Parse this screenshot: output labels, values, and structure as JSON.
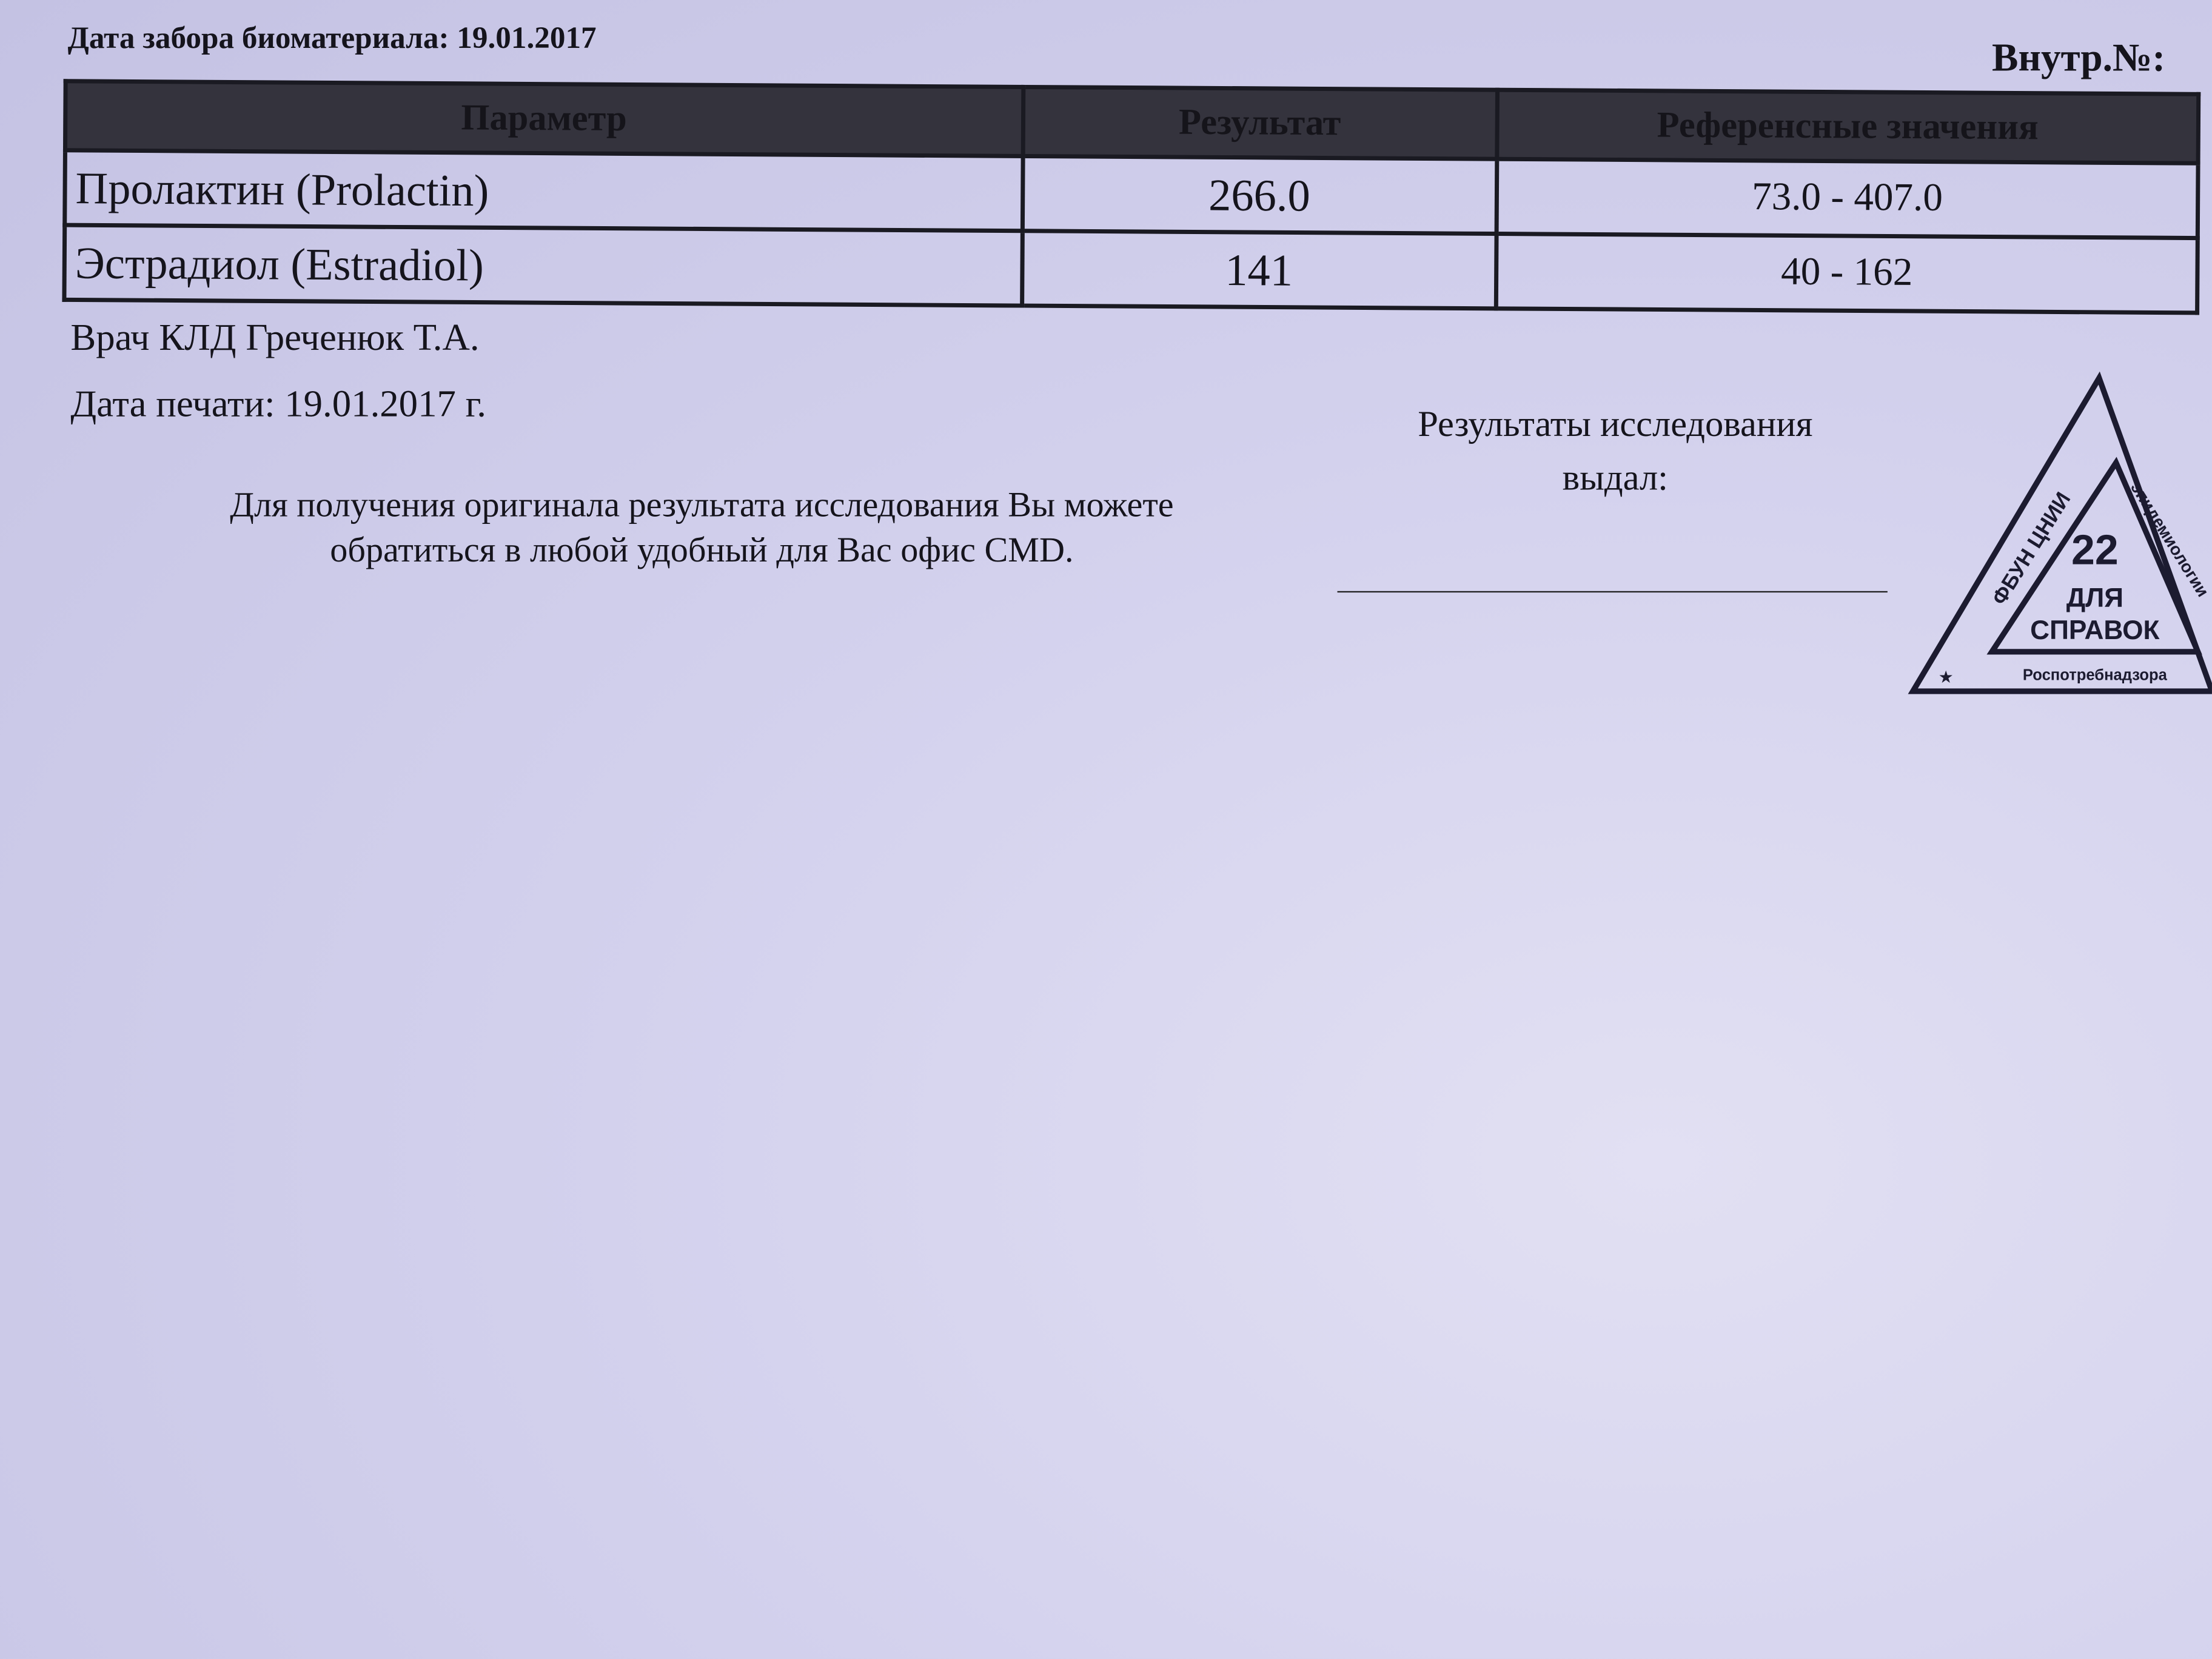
{
  "header": {
    "collection_date_label": "Дата забора биоматериала: 19.01.2017",
    "internal_no_label": "Внутр.№:"
  },
  "table": {
    "columns": [
      "Параметр",
      "Результат",
      "Референсные значения"
    ],
    "rows": [
      {
        "parameter": "Пролактин (Prolactin)",
        "result": "266.0",
        "reference": "73.0 - 407.0"
      },
      {
        "parameter": "Эстрадиол (Estradiol)",
        "result": "141",
        "reference": "40 - 162"
      }
    ]
  },
  "footer": {
    "doctor": "Врач КЛД Греченюк Т.А.",
    "print_date": "Дата печати: 19.01.2017 г.",
    "note": "Для получения оригинала результата исследования Вы можете обратиться в любой удобный для Вас офис CMD.",
    "issued_by_line1": "Результаты исследования",
    "issued_by_line2": "выдал:"
  },
  "stamp": {
    "left_text": "ФБУН ЦНИИ",
    "right_text": "эпидемиологии",
    "number": "22",
    "line1": "ДЛЯ",
    "line2": "СПРАВОК",
    "bottom_text": "Роспотребнадзора"
  }
}
